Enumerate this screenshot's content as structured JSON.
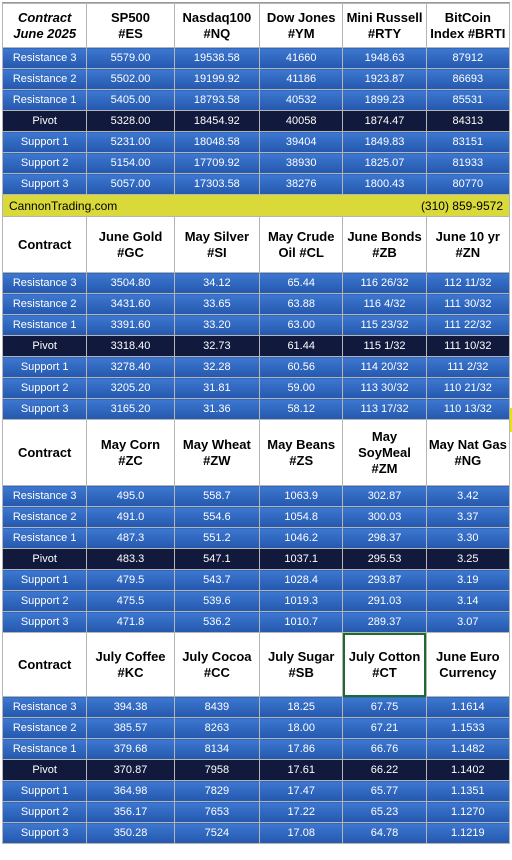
{
  "banner": {
    "site": "CannonTrading.com",
    "phone": "(310) 859-9572"
  },
  "sections": [
    {
      "headers": [
        [
          "Contract",
          "June 2025"
        ],
        [
          "SP500",
          "#ES"
        ],
        [
          "Nasdaq100",
          "#NQ"
        ],
        [
          "Dow Jones",
          "#YM"
        ],
        [
          "Mini Russell",
          "#RTY"
        ],
        [
          "BitCoin",
          "Index #BRTI"
        ]
      ],
      "rows": [
        [
          "Resistance 3",
          "5579.00",
          "19538.58",
          "41660",
          "1948.63",
          "87912"
        ],
        [
          "Resistance 2",
          "5502.00",
          "19199.92",
          "41186",
          "1923.87",
          "86693"
        ],
        [
          "Resistance 1",
          "5405.00",
          "18793.58",
          "40532",
          "1899.23",
          "85531"
        ],
        [
          "Pivot",
          "5328.00",
          "18454.92",
          "40058",
          "1874.47",
          "84313"
        ],
        [
          "Support 1",
          "5231.00",
          "18048.58",
          "39404",
          "1849.83",
          "83151"
        ],
        [
          "Support 2",
          "5154.00",
          "17709.92",
          "38930",
          "1825.07",
          "81933"
        ],
        [
          "Support 3",
          "5057.00",
          "17303.58",
          "38276",
          "1800.43",
          "80770"
        ]
      ]
    },
    {
      "headers": [
        [
          "Contract"
        ],
        [
          "June Gold",
          "#GC"
        ],
        [
          "May Silver",
          "#SI"
        ],
        [
          "May Crude",
          "Oil #CL"
        ],
        [
          "June Bonds",
          "#ZB"
        ],
        [
          "June 10 yr",
          "#ZN"
        ]
      ],
      "rows": [
        [
          "Resistance 3",
          "3504.80",
          "34.12",
          "65.44",
          "116 26/32",
          "112 11/32"
        ],
        [
          "Resistance 2",
          "3431.60",
          "33.65",
          "63.88",
          "116  4/32",
          "111 30/32"
        ],
        [
          "Resistance 1",
          "3391.60",
          "33.20",
          "63.00",
          "115 23/32",
          "111 22/32"
        ],
        [
          "Pivot",
          "3318.40",
          "32.73",
          "61.44",
          "115  1/32",
          "111 10/32"
        ],
        [
          "Support 1",
          "3278.40",
          "32.28",
          "60.56",
          "114 20/32",
          "111  2/32"
        ],
        [
          "Support 2",
          "3205.20",
          "31.81",
          "59.00",
          "113 30/32",
          "110 21/32"
        ],
        [
          "Support 3",
          "3165.20",
          "31.36",
          "58.12",
          "113 17/32",
          "110 13/32"
        ]
      ]
    },
    {
      "headers": [
        [
          "Contract"
        ],
        [
          "May Corn",
          "#ZC"
        ],
        [
          "May  Wheat",
          "#ZW"
        ],
        [
          "May Beans",
          "#ZS"
        ],
        [
          "May",
          "SoyMeal",
          "#ZM"
        ],
        [
          "May Nat Gas",
          "#NG"
        ]
      ],
      "rows": [
        [
          "Resistance 3",
          "495.0",
          "558.7",
          "1063.9",
          "302.87",
          "3.42"
        ],
        [
          "Resistance 2",
          "491.0",
          "554.6",
          "1054.8",
          "300.03",
          "3.37"
        ],
        [
          "Resistance 1",
          "487.3",
          "551.2",
          "1046.2",
          "298.37",
          "3.30"
        ],
        [
          "Pivot",
          "483.3",
          "547.1",
          "1037.1",
          "295.53",
          "3.25"
        ],
        [
          "Support 1",
          "479.5",
          "543.7",
          "1028.4",
          "293.87",
          "3.19"
        ],
        [
          "Support 2",
          "475.5",
          "539.6",
          "1019.3",
          "291.03",
          "3.14"
        ],
        [
          "Support 3",
          "471.8",
          "536.2",
          "1010.7",
          "289.37",
          "3.07"
        ]
      ]
    },
    {
      "headers": [
        [
          "Contract"
        ],
        [
          "July Coffee",
          "#KC"
        ],
        [
          "July Cocoa",
          "#CC"
        ],
        [
          "July Sugar",
          "#SB"
        ],
        [
          "July Cotton",
          "#CT"
        ],
        [
          "June Euro",
          "Currency"
        ]
      ],
      "rows": [
        [
          "Resistance 3",
          "394.38",
          "8439",
          "18.25",
          "67.75",
          "1.1614"
        ],
        [
          "Resistance 2",
          "385.57",
          "8263",
          "18.00",
          "67.21",
          "1.1533"
        ],
        [
          "Resistance 1",
          "379.68",
          "8134",
          "17.86",
          "66.76",
          "1.1482"
        ],
        [
          "Pivot",
          "370.87",
          "7958",
          "17.61",
          "66.22",
          "1.1402"
        ],
        [
          "Support 1",
          "364.98",
          "7829",
          "17.47",
          "65.77",
          "1.1351"
        ],
        [
          "Support 2",
          "356.17",
          "7653",
          "17.22",
          "65.23",
          "1.1270"
        ],
        [
          "Support 3",
          "350.28",
          "7524",
          "17.08",
          "64.78",
          "1.1219"
        ]
      ]
    }
  ]
}
